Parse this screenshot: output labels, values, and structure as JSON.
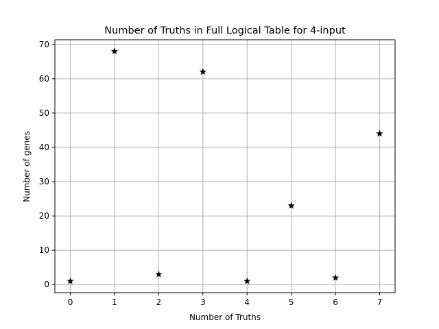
{
  "chart_data": {
    "type": "scatter",
    "title": "Number of Truths in Full Logical Table for 4-input",
    "xlabel": "Number of Truths",
    "ylabel": "Number of genes",
    "x": [
      0,
      1,
      2,
      3,
      4,
      5,
      6,
      7
    ],
    "y": [
      1,
      68,
      3,
      62,
      1,
      23,
      2,
      44
    ],
    "xlim": [
      -0.35,
      7.35
    ],
    "ylim": [
      -2.35,
      71.35
    ],
    "xticks": [
      0,
      1,
      2,
      3,
      4,
      5,
      6,
      7
    ],
    "yticks": [
      0,
      10,
      20,
      30,
      40,
      50,
      60,
      70
    ],
    "marker": "star",
    "marker_color": "#000000",
    "grid": true,
    "grid_color": "#b0b0b0"
  }
}
